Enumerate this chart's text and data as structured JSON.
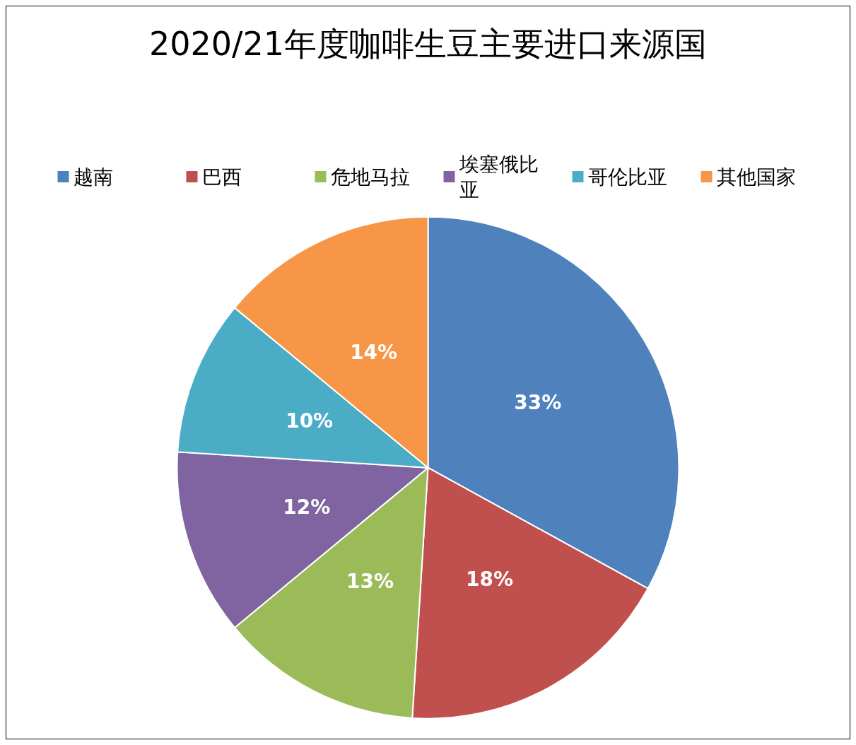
{
  "chart_data": {
    "type": "pie",
    "title": "2020/21年度咖啡生豆主要进口来源国",
    "categories": [
      "越南",
      "巴西",
      "危地马拉",
      "埃塞俄比亚",
      "哥伦比亚",
      "其他国家"
    ],
    "values": [
      33,
      18,
      13,
      12,
      10,
      14
    ],
    "colors": [
      "#4f81bd",
      "#c0504d",
      "#9bbb59",
      "#8064a2",
      "#4bacc6",
      "#f79646"
    ],
    "value_labels": [
      "33%",
      "18%",
      "13%",
      "12%",
      "10%",
      "14%"
    ],
    "legend": "top"
  }
}
